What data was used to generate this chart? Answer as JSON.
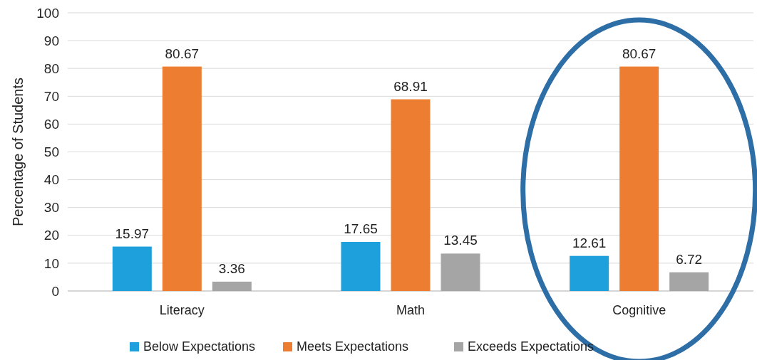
{
  "chart_data": {
    "type": "bar",
    "ylabel": "Percentage of Students",
    "categories": [
      "Literacy",
      "Math",
      "Cognitive"
    ],
    "series": [
      {
        "name": "Below Expectations",
        "color": "#1ea0dc",
        "values": [
          15.97,
          17.65,
          12.61
        ]
      },
      {
        "name": "Meets Expectations",
        "color": "#ed7d31",
        "values": [
          80.67,
          68.91,
          80.67
        ]
      },
      {
        "name": "Exceeds Expectations",
        "color": "#a5a5a5",
        "values": [
          3.36,
          13.45,
          6.72
        ]
      }
    ],
    "ylim": [
      0,
      100
    ],
    "yticks": [
      0,
      10,
      20,
      30,
      40,
      50,
      60,
      70,
      80,
      90,
      100
    ],
    "grid": "y",
    "legend": "bottom",
    "data_labels": true
  }
}
